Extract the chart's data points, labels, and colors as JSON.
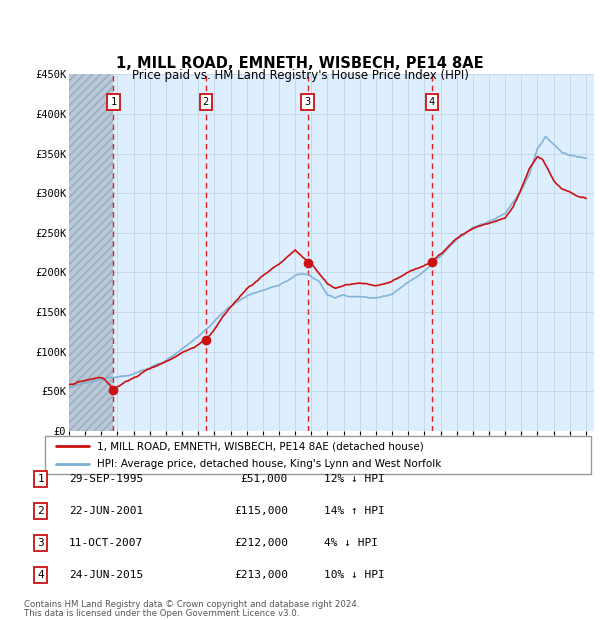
{
  "title": "1, MILL ROAD, EMNETH, WISBECH, PE14 8AE",
  "subtitle": "Price paid vs. HM Land Registry's House Price Index (HPI)",
  "ylim": [
    0,
    450000
  ],
  "yticks": [
    0,
    50000,
    100000,
    150000,
    200000,
    250000,
    300000,
    350000,
    400000,
    450000
  ],
  "ytick_labels": [
    "£0",
    "£50K",
    "£100K",
    "£150K",
    "£200K",
    "£250K",
    "£300K",
    "£350K",
    "£400K",
    "£450K"
  ],
  "xlim_start": 1993.0,
  "xlim_end": 2025.5,
  "sale_dates": [
    1995.747,
    2001.472,
    2007.778,
    2015.472
  ],
  "sale_prices": [
    51000,
    115000,
    212000,
    213000
  ],
  "sale_labels": [
    "1",
    "2",
    "3",
    "4"
  ],
  "sale_info": [
    {
      "num": "1",
      "date": "29-SEP-1995",
      "price": "£51,000",
      "hpi": "12% ↓ HPI"
    },
    {
      "num": "2",
      "date": "22-JUN-2001",
      "price": "£115,000",
      "hpi": "14% ↑ HPI"
    },
    {
      "num": "3",
      "date": "11-OCT-2007",
      "price": "£212,000",
      "hpi": "4% ↓ HPI"
    },
    {
      "num": "4",
      "date": "24-JUN-2015",
      "price": "£213,000",
      "hpi": "10% ↓ HPI"
    }
  ],
  "legend_line1": "1, MILL ROAD, EMNETH, WISBECH, PE14 8AE (detached house)",
  "legend_line2": "HPI: Average price, detached house, King's Lynn and West Norfolk",
  "footer1": "Contains HM Land Registry data © Crown copyright and database right 2024.",
  "footer2": "This data is licensed under the Open Government Licence v3.0.",
  "hpi_color": "#7bafd4",
  "sale_color": "#cc1111",
  "grid_color": "#c8d8e8",
  "bg_color": "#ddeeff",
  "hatch_color": "#b8c8d8"
}
